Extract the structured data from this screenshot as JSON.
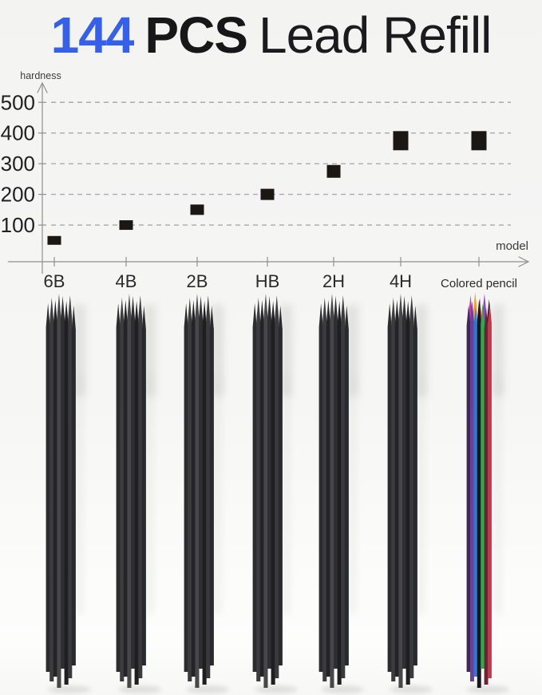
{
  "title": {
    "count": "144",
    "unit": "PCS",
    "rest": "Lead Refill"
  },
  "colors": {
    "accent_blue": "#3560ea",
    "title_black": "#17171a",
    "marker": "#1b1712",
    "axis_gray": "#8f8f8f",
    "grid_gray": "#aaaaaa",
    "background": "#f5f5f4",
    "shadow": "#cfcfcb"
  },
  "chart_data": {
    "type": "scatter",
    "title": "144 PCS Lead Refill",
    "xlabel": "model",
    "ylabel": "hardness",
    "categories": [
      "6B",
      "4B",
      "2B",
      "HB",
      "2H",
      "4H",
      "Colored pencil"
    ],
    "values": [
      50,
      100,
      150,
      200,
      275,
      375,
      375
    ],
    "yticks": [
      100,
      200,
      300,
      400,
      500
    ],
    "ylim": [
      0,
      560
    ],
    "grid": "horizontal-dashed",
    "legend": "none",
    "marker_style": "black-square"
  },
  "bundles": [
    {
      "model": "6B",
      "type": "graphite"
    },
    {
      "model": "4B",
      "type": "graphite"
    },
    {
      "model": "2B",
      "type": "graphite"
    },
    {
      "model": "HB",
      "type": "graphite"
    },
    {
      "model": "2H",
      "type": "graphite"
    },
    {
      "model": "4H",
      "type": "graphite"
    },
    {
      "model": "Colored pencil",
      "type": "colored"
    }
  ],
  "pencils": {
    "graphite_colors": [
      "#2c2c2f",
      "#3c3c3f",
      "#242427",
      "#47474a",
      "#2f2f32",
      "#1f1f22",
      "#3a3a3d",
      "#292a2d"
    ],
    "colored_front": [
      "#41265c",
      "#6a3f9e",
      "#2e77d4",
      "#17171c",
      "#2fa84e",
      "#6f2233",
      "#c63648"
    ],
    "colored_back_tips": [
      "#c937b4",
      "#f0a23a",
      "#e84b4b",
      "#8a46c8",
      "#1b1b1f"
    ]
  }
}
